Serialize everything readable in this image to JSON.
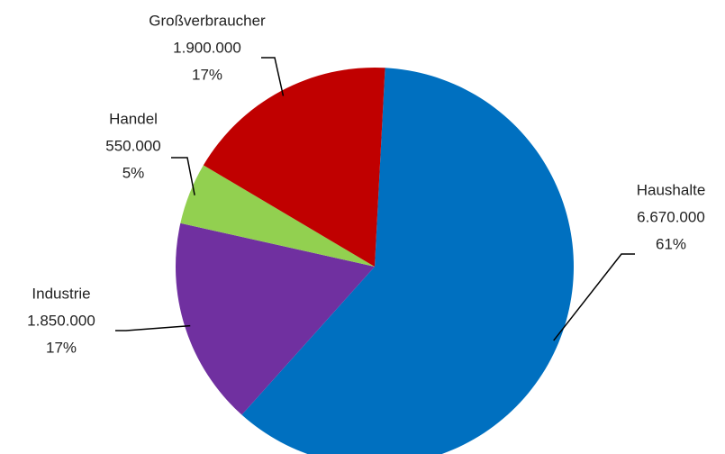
{
  "chart_data": {
    "type": "pie",
    "categories": [
      "Haushalte",
      "Industrie",
      "Handel",
      "Großverbraucher"
    ],
    "values": [
      6670000,
      1850000,
      550000,
      1900000
    ],
    "value_labels": [
      "6.670.000",
      "1.850.000",
      "550.000",
      "1.900.000"
    ],
    "percentages": [
      61,
      17,
      5,
      17
    ],
    "percentage_labels": [
      "61%",
      "17%",
      "5%",
      "17%"
    ],
    "colors": [
      "#0070c0",
      "#7030a0",
      "#92d050",
      "#c00000"
    ]
  }
}
